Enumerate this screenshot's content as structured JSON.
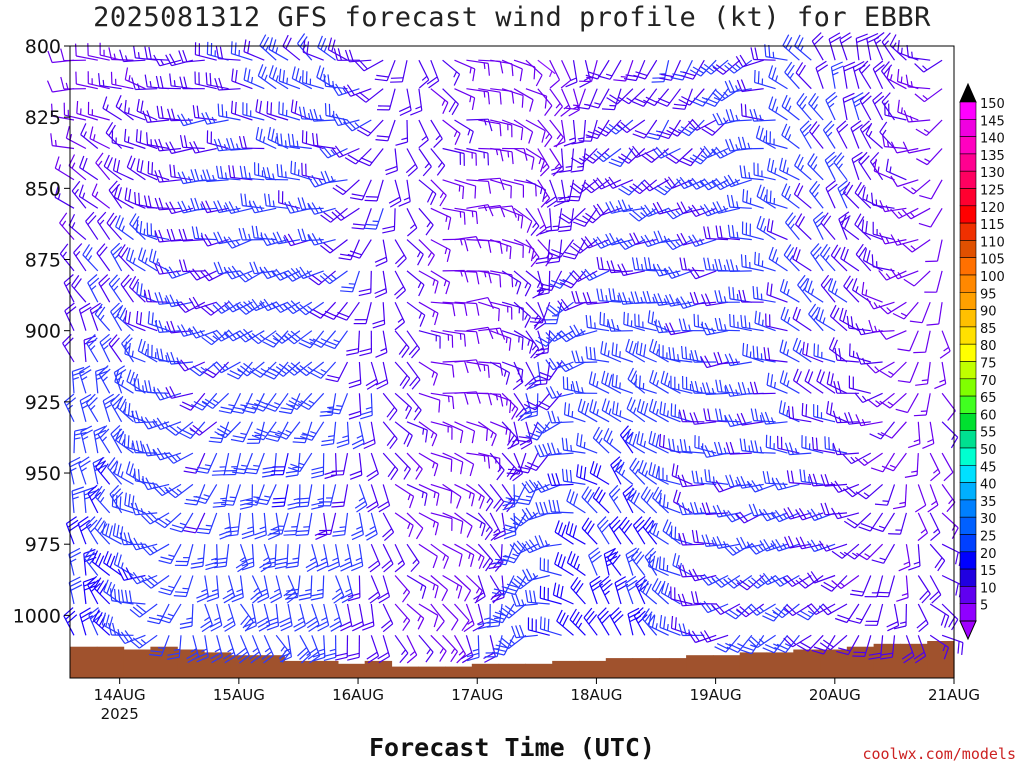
{
  "chart_data": {
    "type": "wind-barb",
    "title": "2025081312 GFS forecast wind profile (kt) for EBBR",
    "xlabel": "Forecast Time (UTC)",
    "ylabel": "",
    "y_axis": {
      "ticks": [
        "800",
        "825",
        "850",
        "875",
        "900",
        "925",
        "950",
        "975",
        "1000"
      ],
      "ylim": [
        800,
        1022
      ],
      "inverted": true
    },
    "x_axis": {
      "tick_labels": [
        "14AUG",
        "15AUG",
        "16AUG",
        "17AUG",
        "18AUG",
        "19AUG",
        "20AUG",
        "21AUG"
      ],
      "year_label": "2025",
      "xlim_hours": [
        -10,
        168
      ]
    },
    "colorbar": {
      "labels": [
        "150",
        "145",
        "140",
        "135",
        "130",
        "125",
        "120",
        "115",
        "110",
        "105",
        "100",
        "95",
        "90",
        "85",
        "80",
        "75",
        "70",
        "65",
        "60",
        "55",
        "50",
        "45",
        "40",
        "35",
        "30",
        "25",
        "20",
        "15",
        "10",
        "5"
      ],
      "colors": [
        "#ff00ff",
        "#f000e0",
        "#ff00c0",
        "#ff0090",
        "#ff0060",
        "#ff0030",
        "#ff0000",
        "#f03000",
        "#e05000",
        "#ff7000",
        "#ff8800",
        "#ffa000",
        "#ffc000",
        "#ffe000",
        "#ffff00",
        "#c0ff00",
        "#80ff00",
        "#40ff20",
        "#00e030",
        "#00e090",
        "#00ffd0",
        "#00e0ff",
        "#00b0ff",
        "#0080ff",
        "#0060ff",
        "#0040ff",
        "#0000ff",
        "#2000e0",
        "#6000f0",
        "#9000ff"
      ],
      "top_arrow_color": "#000000",
      "bottom_arrow_color": "#a000ff"
    },
    "terrain": {
      "color": "#a0522d",
      "surface_pressure": [
        1011,
        1011,
        1012,
        1011,
        1012,
        1013,
        1014,
        1014,
        1016,
        1016,
        1017,
        1016,
        1018,
        1018,
        1018,
        1017,
        1017,
        1017,
        1016,
        1016,
        1015,
        1015,
        1015,
        1014,
        1014,
        1013,
        1013,
        1012,
        1012,
        1011,
        1010,
        1010,
        1009
      ]
    },
    "barb_levels": [
      805,
      815,
      826,
      836,
      847,
      857,
      868,
      879,
      890,
      900,
      911,
      922,
      932,
      943,
      954,
      964,
      975,
      986,
      996,
      1007
    ]
  },
  "watermark": "coolwx.com/models"
}
